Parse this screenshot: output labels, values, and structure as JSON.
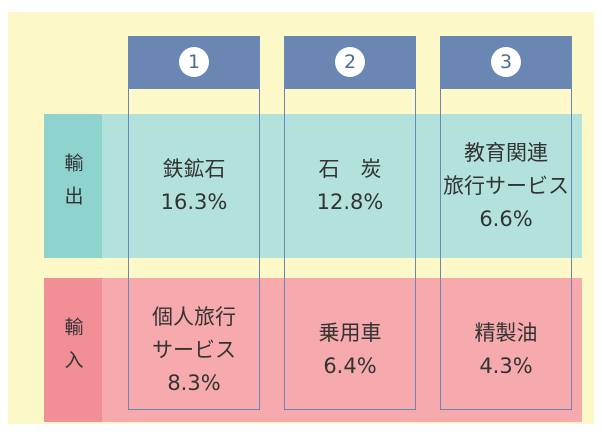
{
  "columns": [
    "1",
    "2",
    "3"
  ],
  "rows": [
    {
      "label": "輸出",
      "cells": [
        [
          "鉄鉱石",
          "16.3%"
        ],
        [
          "石　炭",
          "12.8%"
        ],
        [
          "教育関連",
          "旅行サービス",
          "6.6%"
        ]
      ]
    },
    {
      "label": "輸入",
      "cells": [
        [
          "個人旅行",
          "サービス",
          "8.3%"
        ],
        [
          "乗用車",
          "6.4%"
        ],
        [
          "精製油",
          "4.3%"
        ]
      ]
    }
  ]
}
